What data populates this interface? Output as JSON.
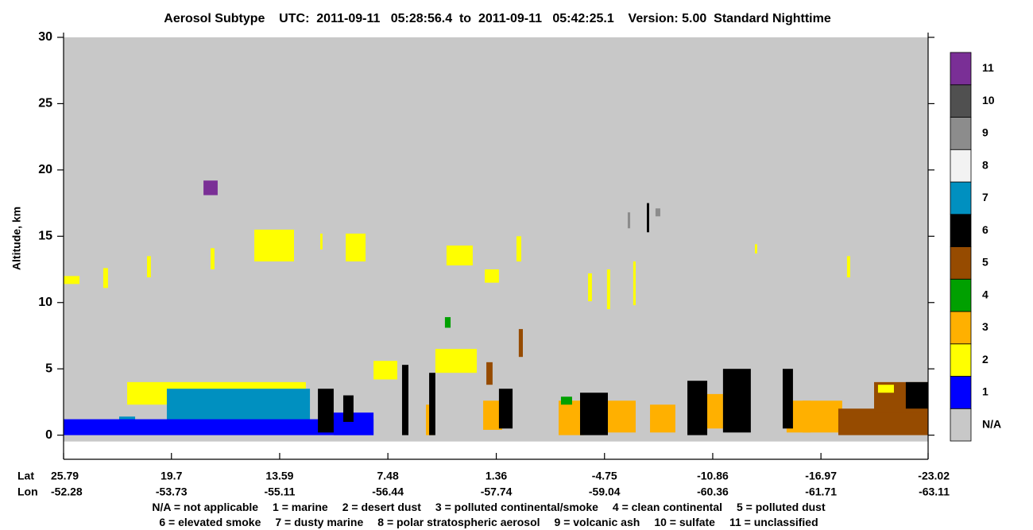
{
  "chart_data": {
    "type": "curtain",
    "title": "Aerosol Subtype    UTC:  2011-09-11   05:28:56.4  to  2011-09-11   05:42:25.1    Version: 5.00  Standard Nighttime",
    "y_label": "Altitude, km",
    "x_row_labels": [
      "Lat",
      "Lon"
    ],
    "xlim": [
      25.79,
      -23.02
    ],
    "xticks": [
      25.79,
      19.7,
      13.59,
      7.48,
      1.36,
      -4.75,
      -10.86,
      -16.97,
      -23.02
    ],
    "lon": [
      -52.28,
      -53.73,
      -55.11,
      -56.44,
      -57.74,
      -59.04,
      -60.36,
      -61.71,
      -63.11
    ],
    "ylim": [
      -2,
      30
    ],
    "yticks": [
      0,
      5,
      10,
      15,
      20,
      25,
      30
    ],
    "categories": [
      "N/A",
      "1",
      "2",
      "3",
      "4",
      "5",
      "6",
      "7",
      "8",
      "9",
      "10",
      "11"
    ],
    "colors": [
      "#c8c8c8",
      "#0000ff",
      "#ffff00",
      "#ffb000",
      "#00a000",
      "#964b00",
      "#000000",
      "#0090c0",
      "#f2f2f2",
      "#8c8c8c",
      "#505050",
      "#7a2f96"
    ],
    "legend_text": [
      [
        "N/A = not applicable",
        "1 = marine",
        "2 = desert dust",
        "3 = polluted continental/smoke",
        "4 = clean continental",
        "5 = polluted dust"
      ],
      [
        "6 = elevated smoke",
        "7 = dusty marine",
        "8 = polar stratospheric aerosol",
        "9 = volcanic ash",
        "10 = sulfate",
        "11 = unclassified"
      ]
    ],
    "features": [
      {
        "lat": [
          22.2,
          12.11
        ],
        "alt": [
          2.3,
          4.0
        ],
        "subtype": 2
      },
      {
        "lat": [
          19.96,
          11.88
        ],
        "alt": [
          0.8,
          3.5
        ],
        "subtype": 7
      },
      {
        "lat": [
          22.65,
          21.75
        ],
        "alt": [
          0.2,
          1.4
        ],
        "subtype": 7
      },
      {
        "lat": [
          25.79,
          8.29
        ],
        "alt": [
          0,
          1.2
        ],
        "subtype": 1
      },
      {
        "lat": [
          10.54,
          8.29
        ],
        "alt": [
          0,
          1.7
        ],
        "subtype": 1
      },
      {
        "lat": [
          25.79,
          24.89
        ],
        "alt": [
          11.4,
          12.0
        ],
        "subtype": 2
      },
      {
        "lat": [
          17.89,
          17.09
        ],
        "alt": [
          18.1,
          19.2
        ],
        "subtype": 11
      },
      {
        "lat": [
          15.02,
          12.78
        ],
        "alt": [
          13.1,
          15.5
        ],
        "subtype": 2
      },
      {
        "lat": [
          9.86,
          8.74
        ],
        "alt": [
          13.1,
          15.2
        ],
        "subtype": 2
      },
      {
        "lat": [
          4.17,
          2.69
        ],
        "alt": [
          12.8,
          14.3
        ],
        "subtype": 2
      },
      {
        "lat": [
          2.01,
          1.21
        ],
        "alt": [
          11.5,
          12.5
        ],
        "subtype": 2
      },
      {
        "lat": [
          11.43,
          10.54
        ],
        "alt": [
          0.2,
          3.5
        ],
        "subtype": 6
      },
      {
        "lat": [
          10.0,
          9.42
        ],
        "alt": [
          1.0,
          3.0
        ],
        "subtype": 6
      },
      {
        "lat": [
          6.68,
          6.32
        ],
        "alt": [
          0,
          5.3
        ],
        "subtype": 6
      },
      {
        "lat": [
          5.33,
          4.88
        ],
        "alt": [
          0,
          2.3
        ],
        "subtype": 3
      },
      {
        "lat": [
          5.15,
          4.8
        ],
        "alt": [
          0,
          4.7
        ],
        "subtype": 6
      },
      {
        "lat": [
          2.1,
          1.03
        ],
        "alt": [
          0.4,
          2.6
        ],
        "subtype": 3
      },
      {
        "lat": [
          1.21,
          0.44
        ],
        "alt": [
          0.5,
          3.5
        ],
        "subtype": 6
      },
      {
        "lat": [
          -2.16,
          -3.59
        ],
        "alt": [
          0,
          2.6
        ],
        "subtype": 3
      },
      {
        "lat": [
          -2.29,
          -2.92
        ],
        "alt": [
          2.3,
          2.9
        ],
        "subtype": 4
      },
      {
        "lat": [
          -3.37,
          -4.94
        ],
        "alt": [
          0,
          3.2
        ],
        "subtype": 6
      },
      {
        "lat": [
          -4.94,
          -6.51
        ],
        "alt": [
          0.2,
          2.6
        ],
        "subtype": 3
      },
      {
        "lat": [
          -7.32,
          -8.75
        ],
        "alt": [
          0.2,
          2.3
        ],
        "subtype": 3
      },
      {
        "lat": [
          -9.87,
          -11.44
        ],
        "alt": [
          0.5,
          3.1
        ],
        "subtype": 3
      },
      {
        "lat": [
          -9.43,
          -10.55
        ],
        "alt": [
          0,
          4.1
        ],
        "subtype": 6
      },
      {
        "lat": [
          -11.44,
          -13.01
        ],
        "alt": [
          0.2,
          5.0
        ],
        "subtype": 6
      },
      {
        "lat": [
          -15.93,
          -18.17
        ],
        "alt": [
          0.2,
          2.6
        ],
        "subtype": 3
      },
      {
        "lat": [
          -15.03,
          -16.38
        ],
        "alt": [
          0.2,
          2.6
        ],
        "subtype": 3
      },
      {
        "lat": [
          -14.81,
          -15.39
        ],
        "alt": [
          0.5,
          5.0
        ],
        "subtype": 6
      },
      {
        "lat": [
          -17.95,
          -23.02
        ],
        "alt": [
          0,
          2.0
        ],
        "subtype": 5
      },
      {
        "lat": [
          -19.97,
          -23.02
        ],
        "alt": [
          1.7,
          4.0
        ],
        "subtype": 5
      },
      {
        "lat": [
          -21.76,
          -23.02
        ],
        "alt": [
          2.0,
          4.0
        ],
        "subtype": 6
      },
      {
        "lat": [
          -20.19,
          -21.09
        ],
        "alt": [
          3.2,
          3.8
        ],
        "subtype": 2
      },
      {
        "lat": [
          -6.06,
          -6.2
        ],
        "alt": [
          15.6,
          16.8
        ],
        "subtype": 9
      },
      {
        "lat": [
          -7.63,
          -7.9
        ],
        "alt": [
          16.5,
          17.1
        ],
        "subtype": 9
      },
      {
        "lat": [
          -7.14,
          -7.27
        ],
        "alt": [
          15.3,
          17.5
        ],
        "subtype": 6
      },
      {
        "lat": [
          0.09,
          -0.14
        ],
        "alt": [
          5.9,
          8.0
        ],
        "subtype": 5
      },
      {
        "lat": [
          4.26,
          3.94
        ],
        "alt": [
          8.1,
          8.9
        ],
        "subtype": 4
      },
      {
        "lat": [
          23.55,
          23.28
        ],
        "alt": [
          11.1,
          12.6
        ],
        "subtype": 2
      },
      {
        "lat": [
          21.08,
          20.86
        ],
        "alt": [
          11.9,
          13.5
        ],
        "subtype": 2
      },
      {
        "lat": [
          17.49,
          17.27
        ],
        "alt": [
          12.5,
          14.1
        ],
        "subtype": 2
      },
      {
        "lat": [
          11.3,
          11.17
        ],
        "alt": [
          14.0,
          15.2
        ],
        "subtype": 2
      },
      {
        "lat": [
          0.22,
          -0.05
        ],
        "alt": [
          13.1,
          15.0
        ],
        "subtype": 2
      },
      {
        "lat": [
          -3.82,
          -4.04
        ],
        "alt": [
          10.1,
          12.2
        ],
        "subtype": 2
      },
      {
        "lat": [
          -4.89,
          -5.07
        ],
        "alt": [
          9.5,
          12.5
        ],
        "subtype": 2
      },
      {
        "lat": [
          -6.37,
          -6.51
        ],
        "alt": [
          9.8,
          13.1
        ],
        "subtype": 2
      },
      {
        "lat": [
          -13.24,
          -13.37
        ],
        "alt": [
          13.7,
          14.4
        ],
        "subtype": 2
      },
      {
        "lat": [
          -18.44,
          -18.62
        ],
        "alt": [
          11.9,
          13.5
        ],
        "subtype": 2
      },
      {
        "lat": [
          8.29,
          6.95
        ],
        "alt": [
          4.2,
          5.6
        ],
        "subtype": 2
      },
      {
        "lat": [
          4.8,
          2.46
        ],
        "alt": [
          4.7,
          6.5
        ],
        "subtype": 2
      },
      {
        "lat": [
          1.92,
          1.57
        ],
        "alt": [
          3.8,
          5.5
        ],
        "subtype": 5
      }
    ]
  }
}
